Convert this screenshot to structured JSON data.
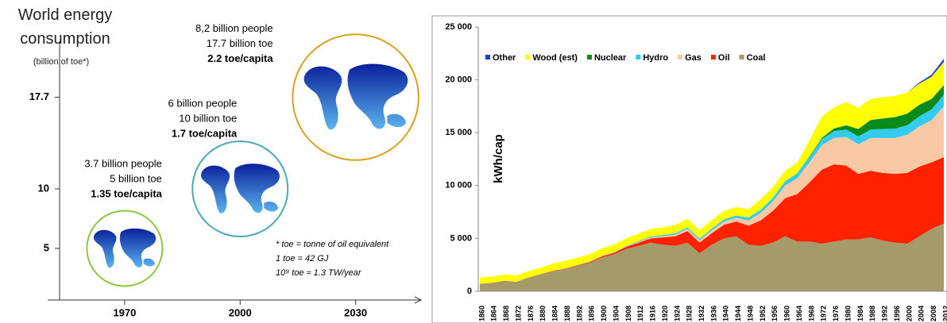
{
  "chart_data": [
    {
      "type": "bubble",
      "title": "World energy consumption",
      "ylabel": "(billion of toe*)",
      "x": [
        1970,
        2000,
        2030
      ],
      "values": [
        5,
        10,
        17.7
      ],
      "xlim": [
        1950,
        2047
      ],
      "xticks": [
        1970,
        2000,
        2030
      ],
      "ylim": [
        0,
        20
      ],
      "yticks": [
        5,
        10,
        17.7
      ],
      "colors": [
        "#8dc63f",
        "#4aa9b5",
        "#d9a21b"
      ],
      "annotations": [
        [
          "3.7 billion people",
          "5 billion toe",
          "1.35 toe/capita"
        ],
        [
          "6 billion people",
          "10 billion toe",
          "1.7 toe/capita"
        ],
        [
          "8,2 billion people",
          "17.7 billion toe",
          "2.2 toe/capita"
        ]
      ],
      "footnote": [
        "* toe = tonne of oil equivalent",
        "1 toe = 42 GJ",
        "10⁹ toe ≈ 1.3 TW/year"
      ]
    },
    {
      "type": "stacked-area",
      "ylabel": "kWh/cap",
      "categories": [
        "1860",
        "1864",
        "1868",
        "1872",
        "1876",
        "1880",
        "1884",
        "1888",
        "1892",
        "1896",
        "1900",
        "1904",
        "1908",
        "1912",
        "1916",
        "1920",
        "1924",
        "1928",
        "1932",
        "1936",
        "1940",
        "1944",
        "1948",
        "1952",
        "1956",
        "1960",
        "1964",
        "1968",
        "1972",
        "1976",
        "1980",
        "1984",
        "1988",
        "1992",
        "1996",
        "2000",
        "2004",
        "2008",
        "2012"
      ],
      "ylim": [
        0,
        25000
      ],
      "yticks": [
        0,
        {
          "value": 5000,
          "label": "5 000"
        },
        {
          "value": 10000,
          "label": "10 000"
        },
        {
          "value": 15000,
          "label": "15 000"
        },
        {
          "value": 20000,
          "label": "20 000"
        },
        {
          "value": 25000,
          "label": "25 000"
        }
      ],
      "series": [
        {
          "name": "Other",
          "color": "#1f3fcf",
          "values": [
            0,
            0,
            0,
            0,
            0,
            0,
            0,
            0,
            0,
            0,
            0,
            0,
            0,
            0,
            0,
            0,
            0,
            0,
            0,
            0,
            0,
            0,
            0,
            0,
            0,
            0,
            0,
            0,
            0,
            0,
            0,
            0,
            0,
            0,
            0,
            0,
            100,
            200,
            300
          ]
        },
        {
          "name": "Wood (est)",
          "color": "#ffff00",
          "values": [
            600,
            600,
            600,
            600,
            600,
            600,
            700,
            700,
            700,
            700,
            700,
            700,
            700,
            700,
            700,
            700,
            800,
            800,
            800,
            800,
            800,
            800,
            800,
            1000,
            1000,
            1000,
            1000,
            1500,
            2000,
            2000,
            2200,
            2000,
            2000,
            2000,
            2000,
            2000,
            2000,
            2100,
            2200
          ]
        },
        {
          "name": "Nuclear",
          "color": "#0a8a1a",
          "values": [
            0,
            0,
            0,
            0,
            0,
            0,
            0,
            0,
            0,
            0,
            0,
            0,
            0,
            0,
            0,
            0,
            0,
            0,
            0,
            0,
            0,
            0,
            0,
            0,
            0,
            0,
            20,
            50,
            100,
            250,
            400,
            700,
            900,
            1000,
            1100,
            1100,
            1100,
            1000,
            900
          ]
        },
        {
          "name": "Hydro",
          "color": "#33ccee",
          "values": [
            0,
            0,
            0,
            0,
            0,
            0,
            0,
            0,
            0,
            10,
            20,
            30,
            50,
            70,
            90,
            110,
            130,
            150,
            160,
            180,
            200,
            220,
            260,
            300,
            350,
            400,
            450,
            520,
            600,
            650,
            700,
            750,
            800,
            850,
            880,
            900,
            950,
            1000,
            1100
          ]
        },
        {
          "name": "Gas",
          "color": "#f9c9a5",
          "values": [
            0,
            0,
            0,
            0,
            0,
            0,
            10,
            20,
            20,
            30,
            30,
            50,
            60,
            80,
            100,
            120,
            150,
            200,
            220,
            260,
            300,
            350,
            500,
            700,
            900,
            1200,
            1500,
            1900,
            2300,
            2500,
            2700,
            2800,
            3100,
            3300,
            3400,
            3600,
            3800,
            4000,
            4800
          ]
        },
        {
          "name": "Oil",
          "color": "#ff2200",
          "values": [
            0,
            0,
            0,
            0,
            10,
            20,
            30,
            50,
            60,
            80,
            100,
            150,
            200,
            300,
            400,
            700,
            900,
            1100,
            1000,
            1100,
            1300,
            1400,
            1800,
            2400,
            3000,
            3600,
            4500,
            5600,
            7000,
            7300,
            7000,
            6200,
            6300,
            6400,
            6500,
            6700,
            6600,
            6300,
            6300
          ]
        },
        {
          "name": "Coal",
          "color": "#a59a6a",
          "values": [
            700,
            800,
            1000,
            900,
            1300,
            1600,
            1900,
            2100,
            2400,
            2700,
            3200,
            3500,
            4000,
            4300,
            4600,
            4400,
            4300,
            4600,
            3600,
            4400,
            5000,
            5200,
            4400,
            4300,
            4600,
            5200,
            4700,
            4700,
            4500,
            4700,
            4900,
            4900,
            5100,
            4800,
            4600,
            4500,
            5200,
            5900,
            6400
          ]
        }
      ]
    }
  ]
}
